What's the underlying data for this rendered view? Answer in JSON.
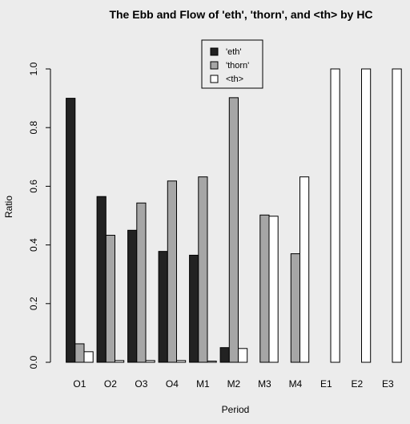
{
  "chart_data": {
    "type": "bar",
    "title": "The Ebb and Flow of 'eth', 'thorn', and <th> by HC",
    "xlabel": "Period",
    "ylabel": "Ratio",
    "ylim": [
      0,
      1
    ],
    "yticks": [
      "0.0",
      "0.2",
      "0.4",
      "0.6",
      "0.8",
      "1.0"
    ],
    "categories": [
      "O1",
      "O2",
      "O3",
      "O4",
      "M1",
      "M2",
      "M3",
      "M4",
      "E1",
      "E2",
      "E3"
    ],
    "series": [
      {
        "name": "'eth'",
        "color": "#222222",
        "values": [
          0.9,
          0.565,
          0.45,
          0.378,
          0.365,
          0.05,
          0.0,
          0.0,
          0.0,
          0.0,
          0.0
        ]
      },
      {
        "name": "'thorn'",
        "color": "#a6a6a6",
        "values": [
          0.063,
          0.433,
          0.543,
          0.618,
          0.632,
          0.902,
          0.502,
          0.37,
          0.0,
          0.0,
          0.0
        ]
      },
      {
        "name": "<th>",
        "color": "#ffffff",
        "values": [
          0.036,
          0.006,
          0.006,
          0.006,
          0.004,
          0.047,
          0.498,
          0.632,
          1.0,
          1.0,
          1.0
        ]
      }
    ],
    "legend": "top-center",
    "grid": false
  }
}
